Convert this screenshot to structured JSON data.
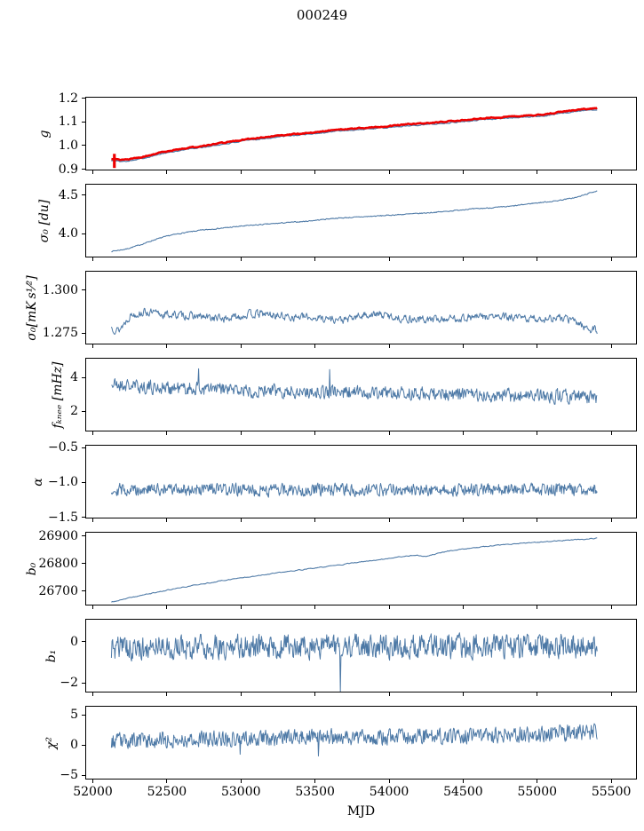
{
  "title": "000249",
  "figure": {
    "background": "#ffffff",
    "axis_color": "#000000",
    "line_blue": "#4d79a6",
    "line_red": "#ee0000"
  },
  "xaxis": {
    "label": "MJD",
    "tick_labels": [
      "52000",
      "52500",
      "53000",
      "53500",
      "54000",
      "54500",
      "55000",
      "55500"
    ],
    "tick_values": [
      52000,
      52500,
      53000,
      53500,
      54000,
      54500,
      55000,
      55500
    ],
    "lim": [
      51949,
      55673
    ]
  },
  "chart_data": [
    {
      "name": "g",
      "type": "line",
      "ylabel": "g",
      "ytick_labels": [
        "0.9",
        "1.0",
        "1.1",
        "1.2"
      ],
      "ytick_values": [
        0.9,
        1.0,
        1.1,
        1.2
      ],
      "ylim": [
        0.895,
        1.206
      ],
      "x_range": [
        52120,
        55410
      ],
      "series": [
        {
          "name": "g-raw",
          "color": "blue",
          "width": 1.3,
          "n": 520,
          "seed": 101,
          "noise": 0.002,
          "phi": 0.5,
          "offset": -0.006,
          "anchors": [
            [
              52120,
              0.94
            ],
            [
              52200,
              0.936
            ],
            [
              52320,
              0.948
            ],
            [
              52450,
              0.968
            ],
            [
              52550,
              0.98
            ],
            [
              52650,
              0.99
            ],
            [
              52750,
              0.998
            ],
            [
              52850,
              1.008
            ],
            [
              52950,
              1.018
            ],
            [
              53050,
              1.028
            ],
            [
              53150,
              1.035
            ],
            [
              53250,
              1.042
            ],
            [
              53350,
              1.048
            ],
            [
              53450,
              1.054
            ],
            [
              53550,
              1.06
            ],
            [
              53650,
              1.068
            ],
            [
              53750,
              1.072
            ],
            [
              53850,
              1.076
            ],
            [
              53950,
              1.08
            ],
            [
              54050,
              1.086
            ],
            [
              54150,
              1.092
            ],
            [
              54250,
              1.096
            ],
            [
              54350,
              1.1
            ],
            [
              54450,
              1.106
            ],
            [
              54550,
              1.112
            ],
            [
              54650,
              1.118
            ],
            [
              54750,
              1.122
            ],
            [
              54850,
              1.125
            ],
            [
              54950,
              1.129
            ],
            [
              55050,
              1.134
            ],
            [
              55150,
              1.143
            ],
            [
              55250,
              1.152
            ],
            [
              55350,
              1.158
            ],
            [
              55410,
              1.161
            ]
          ]
        },
        {
          "name": "g-smooth",
          "color": "red",
          "width": 2.6,
          "n": 520,
          "seed": 102,
          "noise": 0.0018,
          "phi": 0.55,
          "offset": 0,
          "anchors": [
            [
              52120,
              0.94
            ],
            [
              52200,
              0.936
            ],
            [
              52320,
              0.948
            ],
            [
              52450,
              0.968
            ],
            [
              52550,
              0.98
            ],
            [
              52650,
              0.99
            ],
            [
              52750,
              0.998
            ],
            [
              52850,
              1.008
            ],
            [
              52950,
              1.018
            ],
            [
              53050,
              1.028
            ],
            [
              53150,
              1.035
            ],
            [
              53250,
              1.042
            ],
            [
              53350,
              1.048
            ],
            [
              53450,
              1.054
            ],
            [
              53550,
              1.06
            ],
            [
              53650,
              1.068
            ],
            [
              53750,
              1.072
            ],
            [
              53850,
              1.076
            ],
            [
              53950,
              1.08
            ],
            [
              54050,
              1.086
            ],
            [
              54150,
              1.092
            ],
            [
              54250,
              1.096
            ],
            [
              54350,
              1.1
            ],
            [
              54450,
              1.106
            ],
            [
              54550,
              1.112
            ],
            [
              54650,
              1.118
            ],
            [
              54750,
              1.122
            ],
            [
              54850,
              1.125
            ],
            [
              54950,
              1.129
            ],
            [
              55050,
              1.134
            ],
            [
              55150,
              1.143
            ],
            [
              55250,
              1.152
            ],
            [
              55350,
              1.158
            ],
            [
              55410,
              1.161
            ]
          ]
        }
      ],
      "extras": [
        {
          "type": "vline",
          "x": 52140,
          "y0": 0.902,
          "y1": 0.963,
          "color": "red",
          "width": 3.2
        }
      ]
    },
    {
      "name": "sigma0_du",
      "type": "line",
      "ylabel": "σ₀ [du]",
      "ytick_labels": [
        "4.0",
        "4.5"
      ],
      "ytick_values": [
        4.0,
        4.5
      ],
      "ylim": [
        3.69,
        4.65
      ],
      "x_range": [
        52120,
        55410
      ],
      "series": [
        {
          "name": "sigma0-du",
          "color": "blue",
          "width": 1.1,
          "n": 650,
          "seed": 7,
          "noise": 0.006,
          "phi": 0.3,
          "offset": 0,
          "anchors": [
            [
              52120,
              3.76
            ],
            [
              52220,
              3.79
            ],
            [
              52320,
              3.85
            ],
            [
              52420,
              3.92
            ],
            [
              52520,
              3.975
            ],
            [
              52620,
              4.01
            ],
            [
              52720,
              4.04
            ],
            [
              52820,
              4.06
            ],
            [
              52920,
              4.08
            ],
            [
              53020,
              4.1
            ],
            [
              53120,
              4.115
            ],
            [
              53220,
              4.13
            ],
            [
              53320,
              4.145
            ],
            [
              53420,
              4.158
            ],
            [
              53520,
              4.178
            ],
            [
              53620,
              4.2
            ],
            [
              53770,
              4.215
            ],
            [
              53920,
              4.232
            ],
            [
              54070,
              4.25
            ],
            [
              54220,
              4.268
            ],
            [
              54370,
              4.29
            ],
            [
              54520,
              4.32
            ],
            [
              54670,
              4.338
            ],
            [
              54820,
              4.36
            ],
            [
              54970,
              4.4
            ],
            [
              55120,
              4.43
            ],
            [
              55270,
              4.48
            ],
            [
              55410,
              4.57
            ]
          ]
        }
      ],
      "extras": []
    },
    {
      "name": "sigma0_mK",
      "type": "line",
      "ylabel": "σ₀[mK s¹⁄²]",
      "ytick_labels": [
        "1.275",
        "1.300"
      ],
      "ytick_values": [
        1.275,
        1.3
      ],
      "ylim": [
        1.2683,
        1.3113
      ],
      "x_range": [
        52120,
        55410
      ],
      "series": [
        {
          "name": "sigma0-mK",
          "color": "blue",
          "width": 1.0,
          "n": 800,
          "seed": 13,
          "noise": 0.002,
          "phi": 0.45,
          "offset": 0,
          "anchors": [
            [
              52120,
              1.278
            ],
            [
              52170,
              1.2762
            ],
            [
              52250,
              1.2855
            ],
            [
              52350,
              1.2872
            ],
            [
              52450,
              1.2858
            ],
            [
              52600,
              1.2852
            ],
            [
              52750,
              1.284
            ],
            [
              52900,
              1.2832
            ],
            [
              53050,
              1.2858
            ],
            [
              53150,
              1.286
            ],
            [
              53300,
              1.2845
            ],
            [
              53450,
              1.284
            ],
            [
              53600,
              1.2832
            ],
            [
              53700,
              1.2822
            ],
            [
              53850,
              1.2858
            ],
            [
              53950,
              1.2855
            ],
            [
              54100,
              1.2832
            ],
            [
              54250,
              1.2826
            ],
            [
              54400,
              1.2832
            ],
            [
              54550,
              1.284
            ],
            [
              54700,
              1.2845
            ],
            [
              54850,
              1.2836
            ],
            [
              55000,
              1.283
            ],
            [
              55150,
              1.2836
            ],
            [
              55250,
              1.2822
            ],
            [
              55350,
              1.2772
            ],
            [
              55410,
              1.2762
            ]
          ]
        }
      ],
      "extras": []
    },
    {
      "name": "fknee",
      "type": "line",
      "ylabel": "fₖₙₑₑ [mHz]",
      "ytick_labels": [
        "2",
        "4"
      ],
      "ytick_values": [
        2,
        4
      ],
      "ylim": [
        0.79,
        5.16
      ],
      "x_range": [
        52120,
        55410
      ],
      "series": [
        {
          "name": "fknee",
          "color": "blue",
          "width": 1.0,
          "n": 820,
          "seed": 21,
          "noise": 0.38,
          "phi": 0.3,
          "offset": 0,
          "anchors": [
            [
              52120,
              3.6
            ],
            [
              52250,
              3.5
            ],
            [
              52400,
              3.42
            ],
            [
              52600,
              3.35
            ],
            [
              52800,
              3.3
            ],
            [
              53000,
              3.25
            ],
            [
              53200,
              3.2
            ],
            [
              53500,
              3.15
            ],
            [
              53800,
              3.1
            ],
            [
              54100,
              3.05
            ],
            [
              54400,
              3.0
            ],
            [
              54700,
              2.95
            ],
            [
              55000,
              2.9
            ],
            [
              55200,
              2.85
            ],
            [
              55410,
              2.82
            ]
          ],
          "outliers": [
            [
              52712,
              4.55
            ],
            [
              53600,
              4.5
            ]
          ]
        }
      ],
      "extras": []
    },
    {
      "name": "alpha",
      "type": "line",
      "ylabel": "α",
      "ytick_labels": [
        "−0.5",
        "−1.0",
        "−1.5"
      ],
      "ytick_values": [
        -0.5,
        -1.0,
        -1.5
      ],
      "ylim": [
        -1.513,
        -0.462
      ],
      "x_range": [
        52120,
        55410
      ],
      "series": [
        {
          "name": "alpha",
          "color": "blue",
          "width": 1.0,
          "n": 820,
          "seed": 29,
          "noise": 0.085,
          "phi": 0.25,
          "offset": 0,
          "anchors": [
            [
              52120,
              -1.1
            ],
            [
              53500,
              -1.11
            ],
            [
              55410,
              -1.1
            ]
          ]
        }
      ],
      "extras": []
    },
    {
      "name": "b0",
      "type": "line",
      "ylabel": "b₀",
      "ytick_labels": [
        "26700",
        "26800",
        "26900"
      ],
      "ytick_values": [
        26700,
        26800,
        26900
      ],
      "ylim": [
        26648,
        26916
      ],
      "x_range": [
        52120,
        55410
      ],
      "series": [
        {
          "name": "b0",
          "color": "blue",
          "width": 1.1,
          "n": 420,
          "seed": 37,
          "noise": 1.5,
          "phi": 0.5,
          "offset": 0,
          "anchors": [
            [
              52120,
              26657
            ],
            [
              52300,
              26680
            ],
            [
              52500,
              26702
            ],
            [
              52700,
              26722
            ],
            [
              52900,
              26740
            ],
            [
              53100,
              26756
            ],
            [
              53300,
              26770
            ],
            [
              53500,
              26784
            ],
            [
              53650,
              26795
            ],
            [
              53800,
              26806
            ],
            [
              53950,
              26817
            ],
            [
              54100,
              26828
            ],
            [
              54180,
              26833
            ],
            [
              54240,
              26827
            ],
            [
              54400,
              26848
            ],
            [
              54550,
              26858
            ],
            [
              54700,
              26867
            ],
            [
              54850,
              26874
            ],
            [
              55000,
              26880
            ],
            [
              55150,
              26886
            ],
            [
              55300,
              26891
            ],
            [
              55410,
              26895
            ]
          ]
        }
      ],
      "extras": []
    },
    {
      "name": "b1",
      "type": "line",
      "ylabel": "b₁",
      "ytick_labels": [
        "0",
        "−2"
      ],
      "ytick_values": [
        0,
        -2
      ],
      "ylim": [
        -2.46,
        1.105
      ],
      "x_range": [
        52120,
        55410
      ],
      "series": [
        {
          "name": "b1",
          "color": "blue",
          "width": 1.0,
          "n": 820,
          "seed": 45,
          "noise": 0.55,
          "phi": 0.25,
          "offset": 0,
          "anchors": [
            [
              52120,
              -0.28
            ],
            [
              53000,
              -0.25
            ],
            [
              54000,
              -0.22
            ],
            [
              55410,
              -0.18
            ]
          ],
          "outliers": [
            [
              53670,
              -2.45
            ]
          ]
        }
      ],
      "extras": []
    },
    {
      "name": "chi2",
      "type": "line",
      "ylabel": "χ²",
      "ytick_labels": [
        "5",
        "0",
        "−5"
      ],
      "ytick_values": [
        5,
        0,
        -5
      ],
      "ylim": [
        -5.73,
        6.47
      ],
      "x_range": [
        52120,
        55410
      ],
      "series": [
        {
          "name": "chi2",
          "color": "blue",
          "width": 1.0,
          "n": 820,
          "seed": 53,
          "noise": 1.25,
          "phi": 0.25,
          "offset": 0,
          "anchors": [
            [
              52120,
              0.6
            ],
            [
              52600,
              0.9
            ],
            [
              53000,
              1.1
            ],
            [
              53400,
              1.25
            ],
            [
              53800,
              1.3
            ],
            [
              54200,
              1.45
            ],
            [
              54600,
              1.6
            ],
            [
              54900,
              1.75
            ],
            [
              55150,
              2.0
            ],
            [
              55300,
              2.1
            ],
            [
              55410,
              2.2
            ]
          ],
          "outliers": [
            [
              53520,
              -1.9
            ],
            [
              52990,
              -1.6
            ]
          ]
        }
      ],
      "extras": []
    }
  ]
}
